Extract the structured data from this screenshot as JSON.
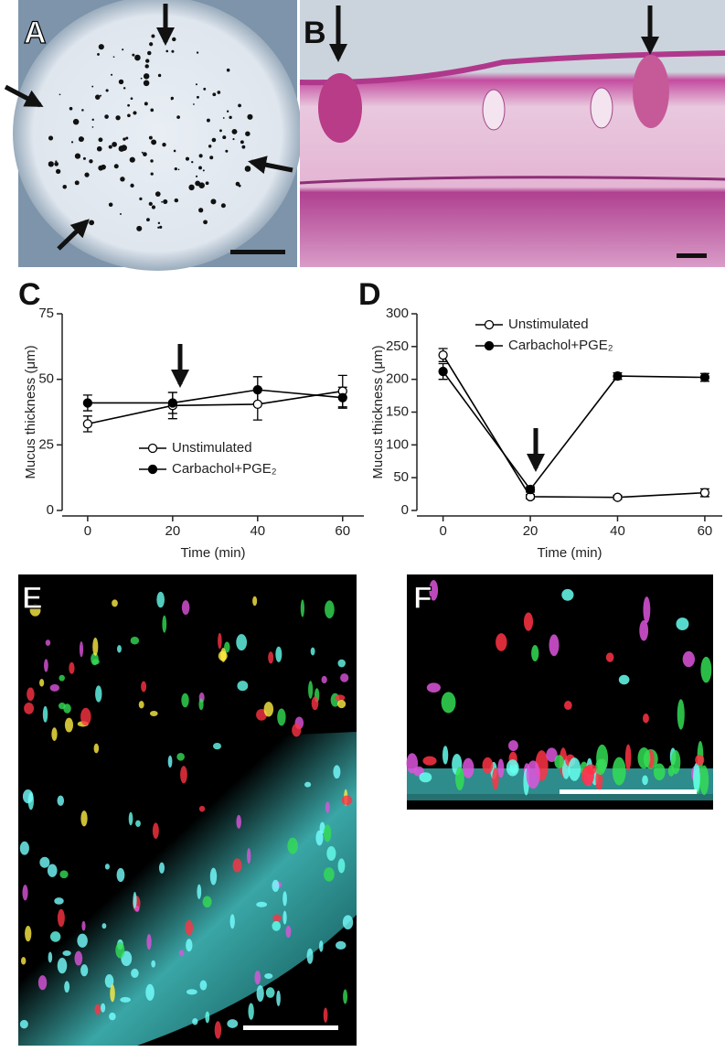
{
  "panels": {
    "a": "A",
    "b": "B",
    "c": "C",
    "d": "D",
    "e": "E",
    "f": "F"
  },
  "chart_data": [
    {
      "type": "line",
      "ylabel": "Mucus thickness (μm)",
      "xlabel": "Time (min)",
      "xlim": [
        -6,
        65
      ],
      "xticks": [
        0,
        20,
        40,
        60
      ],
      "ylim": [
        0,
        75
      ],
      "yticks": [
        0,
        25,
        50,
        75
      ],
      "legend": "lower center",
      "series": [
        {
          "name": "Unstimulated",
          "color": "#000000",
          "marker": "open-circle",
          "x": [
            0,
            20,
            40,
            60
          ],
          "values": [
            33,
            40,
            40.5,
            45.5
          ],
          "errors": [
            3,
            5,
            6,
            6
          ]
        },
        {
          "name": "Carbachol+PGE₂",
          "color": "#000000",
          "marker": "filled-circle",
          "x": [
            0,
            20,
            40,
            60
          ],
          "values": [
            41,
            41,
            46,
            43
          ],
          "errors": [
            3,
            4,
            5,
            4
          ]
        }
      ]
    },
    {
      "type": "line",
      "ylabel": "Mucus thickness (μm)",
      "xlabel": "Time (min)",
      "xlim": [
        -6,
        64
      ],
      "xticks": [
        0,
        20,
        40,
        60
      ],
      "ylim": [
        0,
        300
      ],
      "yticks": [
        0,
        50,
        100,
        150,
        200,
        250,
        300
      ],
      "legend": "upper center",
      "series": [
        {
          "name": "Unstimulated",
          "color": "#000000",
          "marker": "open-circle",
          "x": [
            0,
            20,
            40,
            60
          ],
          "values": [
            237,
            21,
            20,
            27
          ],
          "errors": [
            10,
            3,
            3,
            6
          ]
        },
        {
          "name": "Carbachol+PGE₂",
          "color": "#000000",
          "marker": "filled-circle",
          "x": [
            0,
            20,
            40,
            60
          ],
          "values": [
            212,
            32,
            205,
            203
          ],
          "errors": [
            12,
            4,
            5,
            6
          ]
        }
      ]
    }
  ]
}
